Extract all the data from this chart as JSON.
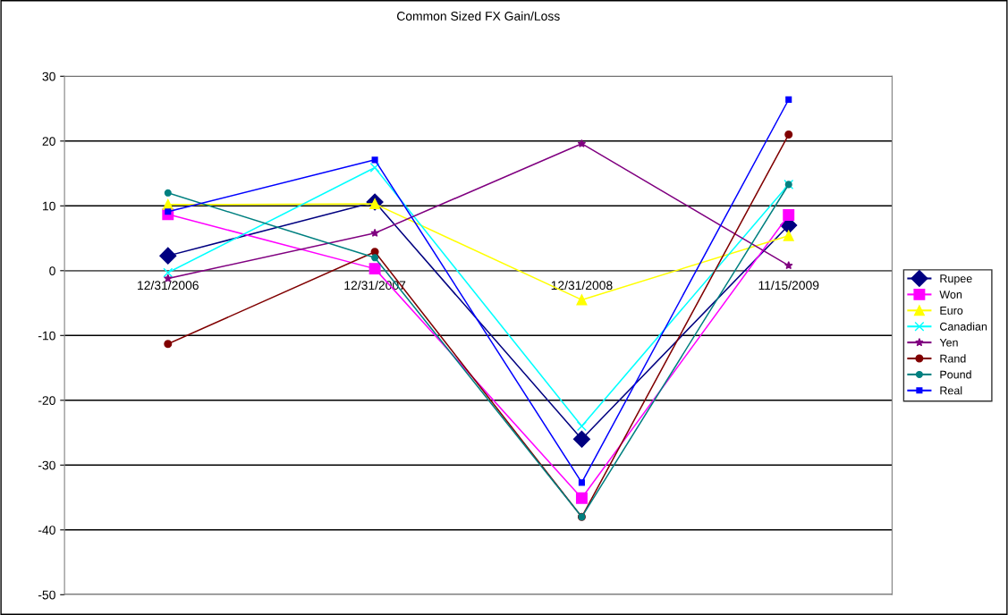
{
  "chart_data": {
    "type": "line",
    "title": "Common Sized FX Gain/Loss",
    "categories": [
      "12/31/2006",
      "12/31/2007",
      "12/31/2008",
      "11/15/2009"
    ],
    "ylim": [
      -50,
      30
    ],
    "yticks": [
      -50,
      -40,
      -30,
      -20,
      -10,
      0,
      10,
      20,
      30
    ],
    "grid": "y",
    "legend": "right",
    "line_style": "solid",
    "series": [
      {
        "name": "Rupee",
        "color": "#000080",
        "marker": "diamond",
        "values": [
          2.3,
          10.6,
          -26.0,
          7.0
        ]
      },
      {
        "name": "Won",
        "color": "#ff00ff",
        "marker": "square",
        "values": [
          8.7,
          0.3,
          -35.1,
          8.6
        ]
      },
      {
        "name": "Euro",
        "color": "#ffff00",
        "marker": "triangle",
        "values": [
          10.2,
          10.3,
          -4.5,
          5.4
        ]
      },
      {
        "name": "Canadian",
        "color": "#00ffff",
        "marker": "cross",
        "values": [
          -0.3,
          15.9,
          -24.0,
          13.3
        ]
      },
      {
        "name": "Yen",
        "color": "#800080",
        "marker": "star",
        "values": [
          -1.2,
          5.8,
          19.6,
          0.8
        ]
      },
      {
        "name": "Rand",
        "color": "#800000",
        "marker": "circle",
        "values": [
          -11.3,
          2.9,
          -38.0,
          21.0
        ]
      },
      {
        "name": "Pound",
        "color": "#008080",
        "marker": "circle",
        "values": [
          12.0,
          2.0,
          -38.0,
          13.3
        ]
      },
      {
        "name": "Real",
        "color": "#0000ff",
        "marker": "square",
        "values": [
          9.1,
          17.1,
          -32.7,
          26.4
        ]
      }
    ]
  }
}
